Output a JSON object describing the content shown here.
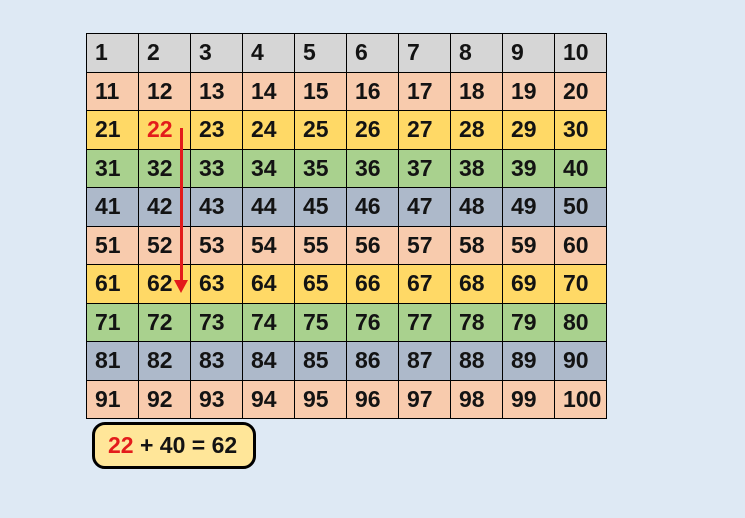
{
  "colors": {
    "background": "#dee9f4",
    "cell_border": "#000000",
    "number_text": "#131313",
    "highlight_red": "#e31b1b",
    "equation_bg": "#ffe699"
  },
  "hundreds_chart": {
    "rows": [
      {
        "color": "#d6d6d6",
        "cells": [
          "1",
          "2",
          "3",
          "4",
          "5",
          "6",
          "7",
          "8",
          "9",
          "10"
        ]
      },
      {
        "color": "#f8cbad",
        "cells": [
          "11",
          "12",
          "13",
          "14",
          "15",
          "16",
          "17",
          "18",
          "19",
          "20"
        ]
      },
      {
        "color": "#ffd966",
        "cells": [
          "21",
          "22",
          "23",
          "24",
          "25",
          "26",
          "27",
          "28",
          "29",
          "30"
        ]
      },
      {
        "color": "#a9d18e",
        "cells": [
          "31",
          "32",
          "33",
          "34",
          "35",
          "36",
          "37",
          "38",
          "39",
          "40"
        ]
      },
      {
        "color": "#adb9ca",
        "cells": [
          "41",
          "42",
          "43",
          "44",
          "45",
          "46",
          "47",
          "48",
          "49",
          "50"
        ]
      },
      {
        "color": "#f8cbad",
        "cells": [
          "51",
          "52",
          "53",
          "54",
          "55",
          "56",
          "57",
          "58",
          "59",
          "60"
        ]
      },
      {
        "color": "#ffd966",
        "cells": [
          "61",
          "62",
          "63",
          "64",
          "65",
          "66",
          "67",
          "68",
          "69",
          "70"
        ]
      },
      {
        "color": "#a9d18e",
        "cells": [
          "71",
          "72",
          "73",
          "74",
          "75",
          "76",
          "77",
          "78",
          "79",
          "80"
        ]
      },
      {
        "color": "#adb9ca",
        "cells": [
          "81",
          "82",
          "83",
          "84",
          "85",
          "86",
          "87",
          "88",
          "89",
          "90"
        ]
      },
      {
        "color": "#f8cbad",
        "cells": [
          "91",
          "92",
          "93",
          "94",
          "95",
          "96",
          "97",
          "98",
          "99",
          "100"
        ]
      }
    ],
    "highlighted_cell": "22",
    "arrow": {
      "from": "22",
      "to": "62",
      "direction": "down",
      "color": "#e31b1b"
    }
  },
  "equation": {
    "highlight": "22",
    "rest": " + 40 = 62",
    "full_text": "22 + 40 = 62"
  }
}
